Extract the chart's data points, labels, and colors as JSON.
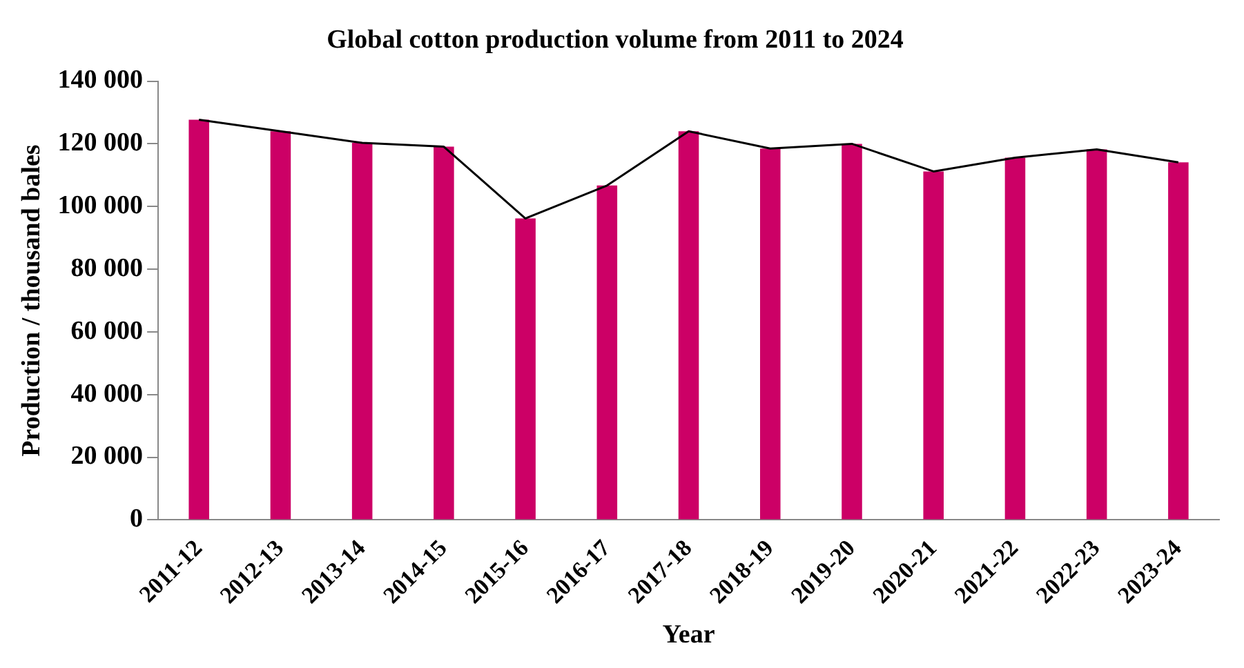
{
  "chart_data": {
    "type": "bar",
    "title": "Global cotton production volume from 2011 to 2024",
    "xlabel": "Year",
    "ylabel": "Production / thousand bales",
    "categories": [
      "2011-12",
      "2012-13",
      "2013-14",
      "2014-15",
      "2015-16",
      "2016-17",
      "2017-18",
      "2018-19",
      "2019-20",
      "2020-21",
      "2021-22",
      "2022-23",
      "2023-24"
    ],
    "series": [
      {
        "color": "#cc0066",
        "values": [
          127700,
          124000,
          120300,
          119100,
          96200,
          106700,
          124000,
          118500,
          120000,
          111200,
          115600,
          118200,
          114100
        ]
      },
      {
        "type": "line",
        "color": "#000000",
        "values": [
          127700,
          124000,
          120300,
          119100,
          96200,
          106700,
          124000,
          118500,
          120000,
          111200,
          115600,
          118200,
          114100
        ]
      }
    ],
    "ylim": [
      0,
      140000
    ],
    "yticks": [
      {
        "value": 0,
        "label": "0"
      },
      {
        "value": 20000,
        "label": "20 000"
      },
      {
        "value": 40000,
        "label": "40 000"
      },
      {
        "value": 60000,
        "label": "60 000"
      },
      {
        "value": 80000,
        "label": "80 000"
      },
      {
        "value": 100000,
        "label": "100 000"
      },
      {
        "value": 120000,
        "label": "120 000"
      },
      {
        "value": 140000,
        "label": "140 000"
      }
    ],
    "grid": false,
    "legend": false,
    "marker": "none",
    "line_style": "solid"
  }
}
